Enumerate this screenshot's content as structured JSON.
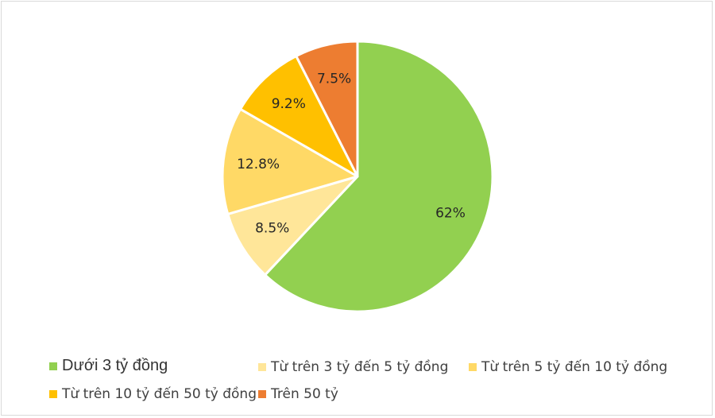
{
  "chart_data": {
    "type": "pie",
    "title": "",
    "categories": [
      "Dưới 3 tỷ đồng",
      "Từ trên 3 tỷ đến 5 tỷ đồng",
      "Từ trên 5 tỷ đến 10 tỷ đồng",
      "Từ trên 10 tỷ đến 50 tỷ đồng",
      "Trên 50 tỷ"
    ],
    "values": [
      62,
      8.5,
      12.8,
      9.2,
      7.5
    ],
    "labels": [
      "62%",
      "8.5%",
      "12.8%",
      "9.2%",
      "7.5%"
    ],
    "colors": [
      "#92D050",
      "#FFE699",
      "#FFD966",
      "#FFC000",
      "#ED7D31"
    ],
    "unit": "%",
    "start_angle": "12 o'clock",
    "direction": "clockwise",
    "legend_position": "bottom"
  }
}
